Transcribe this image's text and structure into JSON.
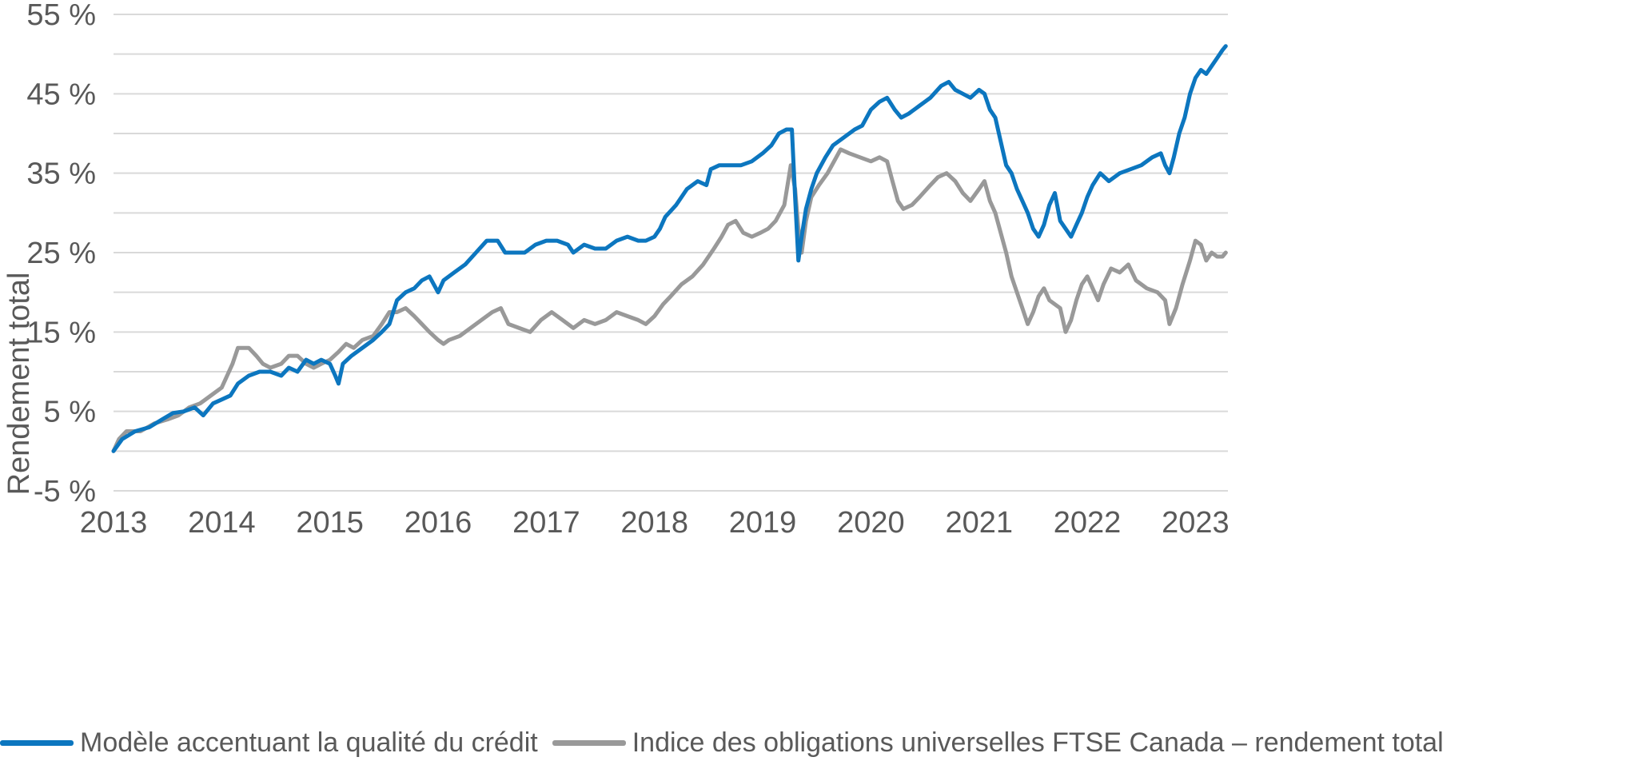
{
  "chart_data": {
    "type": "line",
    "title": "",
    "xlabel": "",
    "ylabel": "Rendement total",
    "xlim": [
      2013.0,
      2023.3
    ],
    "ylim": [
      -5,
      55
    ],
    "y_ticks": [
      -5,
      5,
      15,
      25,
      35,
      45,
      55
    ],
    "y_tick_labels": [
      "-5 %",
      "5 %",
      "15 %",
      "25 %",
      "35 %",
      "45 %",
      "55 %"
    ],
    "x_ticks": [
      2013,
      2014,
      2015,
      2016,
      2017,
      2018,
      2019,
      2020,
      2021,
      2022,
      2023
    ],
    "x_tick_labels": [
      "2013",
      "2014",
      "2015",
      "2016",
      "2017",
      "2018",
      "2019",
      "2020",
      "2021",
      "2022",
      "2023"
    ],
    "grid": "horizontal",
    "legend_position": "bottom",
    "series": [
      {
        "name": "Modèle accentuant la qualité du crédit",
        "color": "#0C76BF",
        "points": [
          [
            2013.0,
            0
          ],
          [
            2013.08,
            1.5
          ],
          [
            2013.2,
            2.5
          ],
          [
            2013.33,
            3.0
          ],
          [
            2013.45,
            4.0
          ],
          [
            2013.55,
            4.8
          ],
          [
            2013.65,
            5.0
          ],
          [
            2013.75,
            5.5
          ],
          [
            2013.83,
            4.5
          ],
          [
            2013.92,
            6.0
          ],
          [
            2014.0,
            6.5
          ],
          [
            2014.08,
            7.0
          ],
          [
            2014.15,
            8.5
          ],
          [
            2014.25,
            9.5
          ],
          [
            2014.35,
            10.0
          ],
          [
            2014.45,
            10.0
          ],
          [
            2014.55,
            9.5
          ],
          [
            2014.62,
            10.5
          ],
          [
            2014.7,
            10.0
          ],
          [
            2014.78,
            11.5
          ],
          [
            2014.85,
            11.0
          ],
          [
            2014.92,
            11.5
          ],
          [
            2015.0,
            11.0
          ],
          [
            2015.05,
            9.5
          ],
          [
            2015.08,
            8.5
          ],
          [
            2015.12,
            11.0
          ],
          [
            2015.2,
            12.0
          ],
          [
            2015.3,
            13.0
          ],
          [
            2015.4,
            14.0
          ],
          [
            2015.48,
            15.0
          ],
          [
            2015.55,
            16.0
          ],
          [
            2015.62,
            19.0
          ],
          [
            2015.7,
            20.0
          ],
          [
            2015.78,
            20.5
          ],
          [
            2015.85,
            21.5
          ],
          [
            2015.92,
            22.0
          ],
          [
            2016.0,
            20.0
          ],
          [
            2016.05,
            21.5
          ],
          [
            2016.15,
            22.5
          ],
          [
            2016.25,
            23.5
          ],
          [
            2016.35,
            25.0
          ],
          [
            2016.45,
            26.5
          ],
          [
            2016.55,
            26.5
          ],
          [
            2016.62,
            25.0
          ],
          [
            2016.7,
            25.0
          ],
          [
            2016.8,
            25.0
          ],
          [
            2016.9,
            26.0
          ],
          [
            2017.0,
            26.5
          ],
          [
            2017.1,
            26.5
          ],
          [
            2017.2,
            26.0
          ],
          [
            2017.25,
            25.0
          ],
          [
            2017.35,
            26.0
          ],
          [
            2017.45,
            25.5
          ],
          [
            2017.55,
            25.5
          ],
          [
            2017.65,
            26.5
          ],
          [
            2017.75,
            27.0
          ],
          [
            2017.85,
            26.5
          ],
          [
            2017.92,
            26.5
          ],
          [
            2018.0,
            27.0
          ],
          [
            2018.05,
            28.0
          ],
          [
            2018.1,
            29.5
          ],
          [
            2018.2,
            31.0
          ],
          [
            2018.3,
            33.0
          ],
          [
            2018.4,
            34.0
          ],
          [
            2018.48,
            33.5
          ],
          [
            2018.52,
            35.5
          ],
          [
            2018.6,
            36.0
          ],
          [
            2018.7,
            36.0
          ],
          [
            2018.8,
            36.0
          ],
          [
            2018.9,
            36.5
          ],
          [
            2019.0,
            37.5
          ],
          [
            2019.08,
            38.5
          ],
          [
            2019.15,
            40.0
          ],
          [
            2019.22,
            40.5
          ],
          [
            2019.27,
            40.5
          ],
          [
            2019.3,
            32.0
          ],
          [
            2019.33,
            24.0
          ],
          [
            2019.36,
            27.0
          ],
          [
            2019.4,
            30.5
          ],
          [
            2019.45,
            33.0
          ],
          [
            2019.5,
            35.0
          ],
          [
            2019.58,
            37.0
          ],
          [
            2019.65,
            38.5
          ],
          [
            2019.75,
            39.5
          ],
          [
            2019.85,
            40.5
          ],
          [
            2019.92,
            41.0
          ],
          [
            2020.0,
            43.0
          ],
          [
            2020.08,
            44.0
          ],
          [
            2020.15,
            44.5
          ],
          [
            2020.22,
            43.0
          ],
          [
            2020.28,
            42.0
          ],
          [
            2020.35,
            42.5
          ],
          [
            2020.45,
            43.5
          ],
          [
            2020.55,
            44.5
          ],
          [
            2020.65,
            46.0
          ],
          [
            2020.72,
            46.5
          ],
          [
            2020.78,
            45.5
          ],
          [
            2020.85,
            45.0
          ],
          [
            2020.92,
            44.5
          ],
          [
            2021.0,
            45.5
          ],
          [
            2021.05,
            45.0
          ],
          [
            2021.1,
            43.0
          ],
          [
            2021.15,
            42.0
          ],
          [
            2021.2,
            39.0
          ],
          [
            2021.25,
            36.0
          ],
          [
            2021.3,
            35.0
          ],
          [
            2021.35,
            33.0
          ],
          [
            2021.4,
            31.5
          ],
          [
            2021.45,
            30.0
          ],
          [
            2021.5,
            28.0
          ],
          [
            2021.55,
            27.0
          ],
          [
            2021.6,
            28.5
          ],
          [
            2021.65,
            31.0
          ],
          [
            2021.7,
            32.5
          ],
          [
            2021.75,
            29.0
          ],
          [
            2021.8,
            28.0
          ],
          [
            2021.85,
            27.0
          ],
          [
            2021.9,
            28.5
          ],
          [
            2021.95,
            30.0
          ],
          [
            2022.0,
            32.0
          ],
          [
            2022.05,
            33.5
          ],
          [
            2022.12,
            35.0
          ],
          [
            2022.2,
            34.0
          ],
          [
            2022.3,
            35.0
          ],
          [
            2022.4,
            35.5
          ],
          [
            2022.5,
            36.0
          ],
          [
            2022.6,
            37.0
          ],
          [
            2022.68,
            37.5
          ],
          [
            2022.72,
            36.0
          ],
          [
            2022.76,
            35.0
          ],
          [
            2022.8,
            37.0
          ],
          [
            2022.85,
            40.0
          ],
          [
            2022.9,
            42.0
          ],
          [
            2022.95,
            45.0
          ],
          [
            2023.0,
            47.0
          ],
          [
            2023.05,
            48.0
          ],
          [
            2023.1,
            47.5
          ],
          [
            2023.15,
            48.5
          ],
          [
            2023.2,
            49.5
          ],
          [
            2023.25,
            50.5
          ],
          [
            2023.28,
            51.0
          ]
        ]
      },
      {
        "name": "Indice des obligations universelles FTSE Canada – rendement total",
        "color": "#999999",
        "points": [
          [
            2013.0,
            0
          ],
          [
            2013.05,
            1.5
          ],
          [
            2013.12,
            2.5
          ],
          [
            2013.25,
            2.5
          ],
          [
            2013.38,
            3.5
          ],
          [
            2013.5,
            4.0
          ],
          [
            2013.6,
            4.5
          ],
          [
            2013.7,
            5.5
          ],
          [
            2013.8,
            6.0
          ],
          [
            2013.9,
            7.0
          ],
          [
            2014.0,
            8.0
          ],
          [
            2014.05,
            9.5
          ],
          [
            2014.1,
            11.0
          ],
          [
            2014.15,
            13.0
          ],
          [
            2014.25,
            13.0
          ],
          [
            2014.32,
            12.0
          ],
          [
            2014.38,
            11.0
          ],
          [
            2014.45,
            10.5
          ],
          [
            2014.55,
            11.0
          ],
          [
            2014.62,
            12.0
          ],
          [
            2014.7,
            12.0
          ],
          [
            2014.78,
            11.0
          ],
          [
            2014.85,
            10.5
          ],
          [
            2014.92,
            11.0
          ],
          [
            2015.0,
            11.5
          ],
          [
            2015.08,
            12.5
          ],
          [
            2015.15,
            13.5
          ],
          [
            2015.22,
            13.0
          ],
          [
            2015.3,
            14.0
          ],
          [
            2015.4,
            14.5
          ],
          [
            2015.48,
            16.0
          ],
          [
            2015.55,
            17.5
          ],
          [
            2015.62,
            17.5
          ],
          [
            2015.7,
            18.0
          ],
          [
            2015.78,
            17.0
          ],
          [
            2015.85,
            16.0
          ],
          [
            2015.92,
            15.0
          ],
          [
            2016.0,
            14.0
          ],
          [
            2016.05,
            13.5
          ],
          [
            2016.1,
            14.0
          ],
          [
            2016.2,
            14.5
          ],
          [
            2016.3,
            15.5
          ],
          [
            2016.4,
            16.5
          ],
          [
            2016.5,
            17.5
          ],
          [
            2016.58,
            18.0
          ],
          [
            2016.65,
            16.0
          ],
          [
            2016.75,
            15.5
          ],
          [
            2016.85,
            15.0
          ],
          [
            2016.95,
            16.5
          ],
          [
            2017.05,
            17.5
          ],
          [
            2017.15,
            16.5
          ],
          [
            2017.25,
            15.5
          ],
          [
            2017.35,
            16.5
          ],
          [
            2017.45,
            16.0
          ],
          [
            2017.55,
            16.5
          ],
          [
            2017.65,
            17.5
          ],
          [
            2017.75,
            17.0
          ],
          [
            2017.85,
            16.5
          ],
          [
            2017.92,
            16.0
          ],
          [
            2018.0,
            17.0
          ],
          [
            2018.08,
            18.5
          ],
          [
            2018.15,
            19.5
          ],
          [
            2018.25,
            21.0
          ],
          [
            2018.35,
            22.0
          ],
          [
            2018.45,
            23.5
          ],
          [
            2018.55,
            25.5
          ],
          [
            2018.62,
            27.0
          ],
          [
            2018.68,
            28.5
          ],
          [
            2018.75,
            29.0
          ],
          [
            2018.82,
            27.5
          ],
          [
            2018.9,
            27.0
          ],
          [
            2018.98,
            27.5
          ],
          [
            2019.05,
            28.0
          ],
          [
            2019.12,
            29.0
          ],
          [
            2019.2,
            31.0
          ],
          [
            2019.26,
            36.0
          ],
          [
            2019.3,
            33.0
          ],
          [
            2019.33,
            28.0
          ],
          [
            2019.36,
            25.0
          ],
          [
            2019.4,
            29.0
          ],
          [
            2019.45,
            32.0
          ],
          [
            2019.52,
            33.5
          ],
          [
            2019.6,
            35.0
          ],
          [
            2019.68,
            37.0
          ],
          [
            2019.72,
            38.0
          ],
          [
            2019.8,
            37.5
          ],
          [
            2019.9,
            37.0
          ],
          [
            2020.0,
            36.5
          ],
          [
            2020.08,
            37.0
          ],
          [
            2020.15,
            36.5
          ],
          [
            2020.2,
            34.0
          ],
          [
            2020.25,
            31.5
          ],
          [
            2020.3,
            30.5
          ],
          [
            2020.38,
            31.0
          ],
          [
            2020.45,
            32.0
          ],
          [
            2020.55,
            33.5
          ],
          [
            2020.62,
            34.5
          ],
          [
            2020.7,
            35.0
          ],
          [
            2020.78,
            34.0
          ],
          [
            2020.85,
            32.5
          ],
          [
            2020.92,
            31.5
          ],
          [
            2021.0,
            33.0
          ],
          [
            2021.05,
            34.0
          ],
          [
            2021.1,
            31.5
          ],
          [
            2021.15,
            30.0
          ],
          [
            2021.2,
            27.5
          ],
          [
            2021.25,
            25.0
          ],
          [
            2021.3,
            22.0
          ],
          [
            2021.35,
            20.0
          ],
          [
            2021.4,
            18.0
          ],
          [
            2021.45,
            16.0
          ],
          [
            2021.5,
            17.5
          ],
          [
            2021.55,
            19.5
          ],
          [
            2021.6,
            20.5
          ],
          [
            2021.65,
            19.0
          ],
          [
            2021.7,
            18.5
          ],
          [
            2021.75,
            18.0
          ],
          [
            2021.8,
            15.0
          ],
          [
            2021.85,
            16.5
          ],
          [
            2021.9,
            19.0
          ],
          [
            2021.95,
            21.0
          ],
          [
            2022.0,
            22.0
          ],
          [
            2022.05,
            20.5
          ],
          [
            2022.1,
            19.0
          ],
          [
            2022.15,
            21.0
          ],
          [
            2022.22,
            23.0
          ],
          [
            2022.3,
            22.5
          ],
          [
            2022.38,
            23.5
          ],
          [
            2022.45,
            21.5
          ],
          [
            2022.55,
            20.5
          ],
          [
            2022.65,
            20.0
          ],
          [
            2022.72,
            19.0
          ],
          [
            2022.76,
            16.0
          ],
          [
            2022.82,
            18.0
          ],
          [
            2022.88,
            21.0
          ],
          [
            2022.95,
            24.0
          ],
          [
            2023.0,
            26.5
          ],
          [
            2023.05,
            26.0
          ],
          [
            2023.1,
            24.0
          ],
          [
            2023.15,
            25.0
          ],
          [
            2023.2,
            24.5
          ],
          [
            2023.25,
            24.5
          ],
          [
            2023.28,
            25.0
          ]
        ]
      }
    ]
  }
}
